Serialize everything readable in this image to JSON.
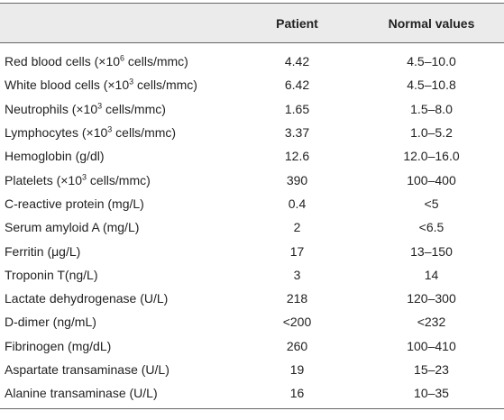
{
  "table": {
    "header": [
      "",
      "Patient",
      "Normal values"
    ],
    "rows": [
      [
        {
          "text": "Red blood cells (×10",
          "sup": "6",
          "rest": " cells/mmc)"
        },
        "4.42",
        "4.5–10.0"
      ],
      [
        {
          "text": "White blood cells (×10",
          "sup": "3",
          "rest": " cells/mmc)"
        },
        "6.42",
        "4.5–10.8"
      ],
      [
        {
          "text": "Neutrophils (×10",
          "sup": "3",
          "rest": " cells/mmc)"
        },
        "1.65",
        "1.5–8.0"
      ],
      [
        {
          "text": "Lymphocytes (×10",
          "sup": "3",
          "rest": " cells/mmc)"
        },
        "3.37",
        "1.0–5.2"
      ],
      [
        "Hemoglobin (g/dl)",
        "12.6",
        "12.0–16.0"
      ],
      [
        {
          "text": "Platelets (×10",
          "sup": "3",
          "rest": " cells/mmc)"
        },
        "390",
        "100–400"
      ],
      [
        "C-reactive protein (mg/L)",
        "0.4",
        "<5"
      ],
      [
        "Serum amyloid A (mg/L)",
        "2",
        "<6.5"
      ],
      [
        "Ferritin (μg/L)",
        "17",
        "13–150"
      ],
      [
        "Troponin T(ng/L)",
        "3",
        "14"
      ],
      [
        "Lactate dehydrogenase (U/L)",
        "218",
        "120–300"
      ],
      [
        "D-dimer (ng/mL)",
        "<200",
        "<232"
      ],
      [
        "Fibrinogen (mg/dL)",
        "260",
        "100–410"
      ],
      [
        "Aspartate transaminase (U/L)",
        "19",
        "15–23"
      ],
      [
        "Alanine transaminase (U/L)",
        "16",
        "10–35"
      ]
    ]
  }
}
